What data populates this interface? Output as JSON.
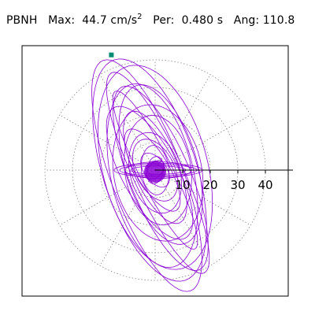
{
  "header": {
    "station": "PBNH",
    "max_label": "Max:",
    "max_value": "44.7 cm/s",
    "max_exponent": "2",
    "per_label": "Per:",
    "per_value": "0.480 s",
    "ang_label": "Ang:",
    "ang_value": "110.8"
  },
  "chart_data": {
    "type": "polar-particle-motion",
    "radial_ticks": [
      10,
      20,
      30,
      40
    ],
    "radial_tick_labels": [
      "10",
      "20",
      "30",
      "40"
    ],
    "rmax": 50,
    "grid_circles": [
      10,
      20,
      30,
      40
    ],
    "grid_spokes_deg": [
      30,
      60,
      90,
      120,
      150,
      180,
      210,
      240,
      270,
      300,
      330
    ],
    "grid_style": "dotted",
    "angle_deg": 110.8,
    "max_amplitude": 44.7,
    "marker_color": "#008b73",
    "trace_color": "#8a00d4",
    "grid_color": "#888888"
  }
}
